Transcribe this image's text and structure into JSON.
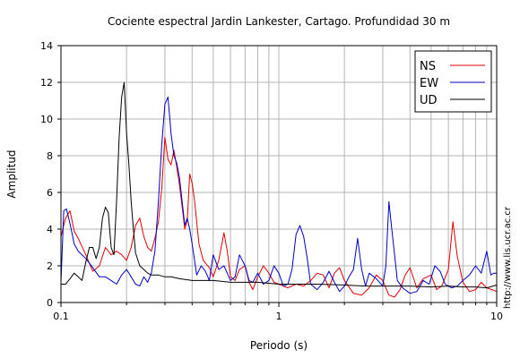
{
  "chart_data": {
    "type": "line",
    "title": "Cociente espectral Jardin Lankester, Cartago. Profundidad 30 m",
    "xlabel": "Periodo (s)",
    "ylabel": "Amplitud",
    "xscale": "log",
    "xlim": [
      0.1,
      10
    ],
    "ylim": [
      0,
      14
    ],
    "xticks": [
      {
        "value": 0.1,
        "label": "0.1"
      },
      {
        "value": 1,
        "label": "1"
      },
      {
        "value": 10,
        "label": "10"
      }
    ],
    "yticks": [
      {
        "value": 0,
        "label": "0"
      },
      {
        "value": 2,
        "label": "2"
      },
      {
        "value": 4,
        "label": "4"
      },
      {
        "value": 6,
        "label": "6"
      },
      {
        "value": 8,
        "label": "8"
      },
      {
        "value": 10,
        "label": "10"
      },
      {
        "value": 12,
        "label": "12"
      },
      {
        "value": 14,
        "label": "14"
      }
    ],
    "grid": true,
    "legend_position": "top-right",
    "series": [
      {
        "name": "NS",
        "color": "#e00000",
        "x": [
          0.1,
          0.105,
          0.11,
          0.115,
          0.12,
          0.13,
          0.14,
          0.15,
          0.16,
          0.17,
          0.18,
          0.19,
          0.2,
          0.21,
          0.22,
          0.23,
          0.24,
          0.25,
          0.26,
          0.27,
          0.28,
          0.29,
          0.3,
          0.31,
          0.32,
          0.33,
          0.34,
          0.35,
          0.36,
          0.37,
          0.38,
          0.39,
          0.4,
          0.41,
          0.43,
          0.45,
          0.48,
          0.5,
          0.53,
          0.56,
          0.58,
          0.6,
          0.63,
          0.66,
          0.7,
          0.73,
          0.76,
          0.8,
          0.85,
          0.9,
          0.95,
          1.0,
          1.1,
          1.2,
          1.3,
          1.4,
          1.5,
          1.6,
          1.7,
          1.8,
          1.9,
          2.0,
          2.2,
          2.4,
          2.6,
          2.8,
          3.0,
          3.2,
          3.4,
          3.6,
          3.8,
          4.0,
          4.3,
          4.6,
          5.0,
          5.3,
          5.6,
          6.0,
          6.3,
          6.6,
          7.0,
          7.5,
          8.0,
          8.5,
          9.0,
          9.5,
          10.0
        ],
        "y": [
          3.6,
          4.6,
          5.0,
          3.9,
          3.5,
          2.6,
          1.7,
          2.0,
          3.0,
          2.6,
          2.8,
          2.6,
          2.3,
          3.0,
          4.2,
          4.6,
          3.6,
          3.0,
          2.8,
          3.5,
          4.4,
          6.2,
          9.0,
          7.8,
          7.5,
          8.3,
          7.4,
          6.4,
          5.2,
          4.0,
          4.5,
          7.0,
          6.5,
          5.6,
          3.2,
          2.3,
          1.9,
          1.4,
          2.3,
          3.8,
          2.8,
          1.4,
          1.2,
          1.8,
          2.0,
          1.1,
          0.7,
          1.4,
          2.0,
          1.6,
          1.1,
          1.0,
          0.8,
          1.0,
          0.9,
          1.2,
          1.6,
          1.5,
          0.8,
          1.6,
          1.9,
          1.2,
          0.5,
          0.4,
          0.8,
          1.5,
          1.2,
          0.4,
          0.3,
          0.7,
          1.5,
          1.9,
          0.8,
          1.3,
          1.5,
          0.7,
          0.9,
          1.8,
          4.4,
          2.5,
          1.1,
          0.6,
          0.7,
          1.1,
          0.8,
          0.7,
          0.6
        ]
      },
      {
        "name": "EW",
        "color": "#0000c8",
        "x": [
          0.1,
          0.103,
          0.106,
          0.11,
          0.115,
          0.12,
          0.13,
          0.14,
          0.15,
          0.16,
          0.17,
          0.18,
          0.19,
          0.2,
          0.21,
          0.22,
          0.23,
          0.24,
          0.25,
          0.26,
          0.27,
          0.28,
          0.29,
          0.3,
          0.31,
          0.32,
          0.33,
          0.34,
          0.35,
          0.36,
          0.37,
          0.38,
          0.39,
          0.4,
          0.42,
          0.44,
          0.46,
          0.48,
          0.5,
          0.53,
          0.56,
          0.6,
          0.63,
          0.66,
          0.7,
          0.73,
          0.76,
          0.8,
          0.85,
          0.9,
          0.95,
          1.0,
          1.05,
          1.1,
          1.15,
          1.2,
          1.25,
          1.3,
          1.35,
          1.4,
          1.5,
          1.6,
          1.7,
          1.8,
          1.9,
          2.0,
          2.1,
          2.2,
          2.3,
          2.4,
          2.5,
          2.6,
          2.8,
          3.0,
          3.1,
          3.2,
          3.3,
          3.5,
          3.7,
          4.0,
          4.3,
          4.6,
          4.9,
          5.2,
          5.5,
          5.8,
          6.2,
          6.6,
          7.0,
          7.5,
          8.0,
          8.5,
          9.0,
          9.4,
          9.7,
          10.0
        ],
        "y": [
          1.1,
          5.0,
          5.1,
          4.3,
          3.2,
          2.8,
          2.4,
          1.9,
          1.4,
          1.4,
          1.2,
          1.0,
          1.5,
          1.8,
          1.4,
          1.0,
          0.9,
          1.4,
          1.1,
          1.6,
          2.8,
          5.5,
          8.6,
          10.8,
          11.2,
          9.2,
          8.0,
          7.6,
          6.8,
          5.5,
          4.2,
          4.6,
          4.0,
          3.2,
          1.5,
          2.0,
          1.7,
          1.2,
          2.6,
          1.8,
          2.0,
          1.2,
          1.4,
          2.6,
          2.0,
          1.2,
          1.1,
          1.6,
          1.0,
          1.2,
          2.0,
          1.6,
          0.9,
          1.0,
          1.8,
          3.7,
          4.2,
          3.6,
          2.4,
          1.0,
          0.7,
          1.1,
          1.7,
          1.1,
          0.6,
          0.9,
          1.4,
          1.8,
          3.5,
          1.8,
          0.9,
          1.6,
          1.3,
          0.9,
          2.0,
          5.5,
          4.0,
          1.2,
          0.8,
          0.5,
          0.6,
          1.2,
          1.0,
          2.0,
          1.7,
          1.0,
          0.8,
          0.9,
          1.2,
          1.5,
          2.0,
          1.6,
          2.8,
          1.5,
          1.6,
          1.6
        ]
      },
      {
        "name": "UD",
        "color": "#000000",
        "x": [
          0.1,
          0.105,
          0.11,
          0.115,
          0.12,
          0.125,
          0.13,
          0.135,
          0.14,
          0.145,
          0.15,
          0.155,
          0.16,
          0.165,
          0.17,
          0.175,
          0.18,
          0.185,
          0.19,
          0.195,
          0.2,
          0.205,
          0.21,
          0.215,
          0.22,
          0.23,
          0.24,
          0.25,
          0.26,
          0.28,
          0.3,
          0.32,
          0.35,
          0.4,
          0.45,
          0.5,
          0.6,
          0.7,
          0.8,
          1.0,
          1.2,
          1.5,
          2.0,
          2.5,
          3.0,
          4.0,
          5.0,
          6.0,
          7.0,
          8.0,
          9.0,
          10.0
        ],
        "y": [
          1.0,
          1.0,
          1.3,
          1.6,
          1.4,
          1.2,
          2.2,
          3.0,
          3.0,
          2.4,
          3.0,
          4.6,
          5.2,
          4.9,
          3.0,
          2.6,
          5.5,
          9.0,
          11.2,
          12.0,
          9.2,
          7.5,
          5.5,
          4.0,
          2.7,
          2.0,
          1.8,
          1.6,
          1.5,
          1.5,
          1.4,
          1.4,
          1.3,
          1.2,
          1.2,
          1.2,
          1.1,
          1.1,
          1.1,
          1.0,
          1.0,
          1.0,
          0.95,
          0.9,
          0.9,
          0.9,
          0.85,
          0.9,
          0.85,
          0.85,
          0.8,
          0.95
        ]
      }
    ],
    "side_text": "http://www.lis.ucr.ac.cr"
  }
}
